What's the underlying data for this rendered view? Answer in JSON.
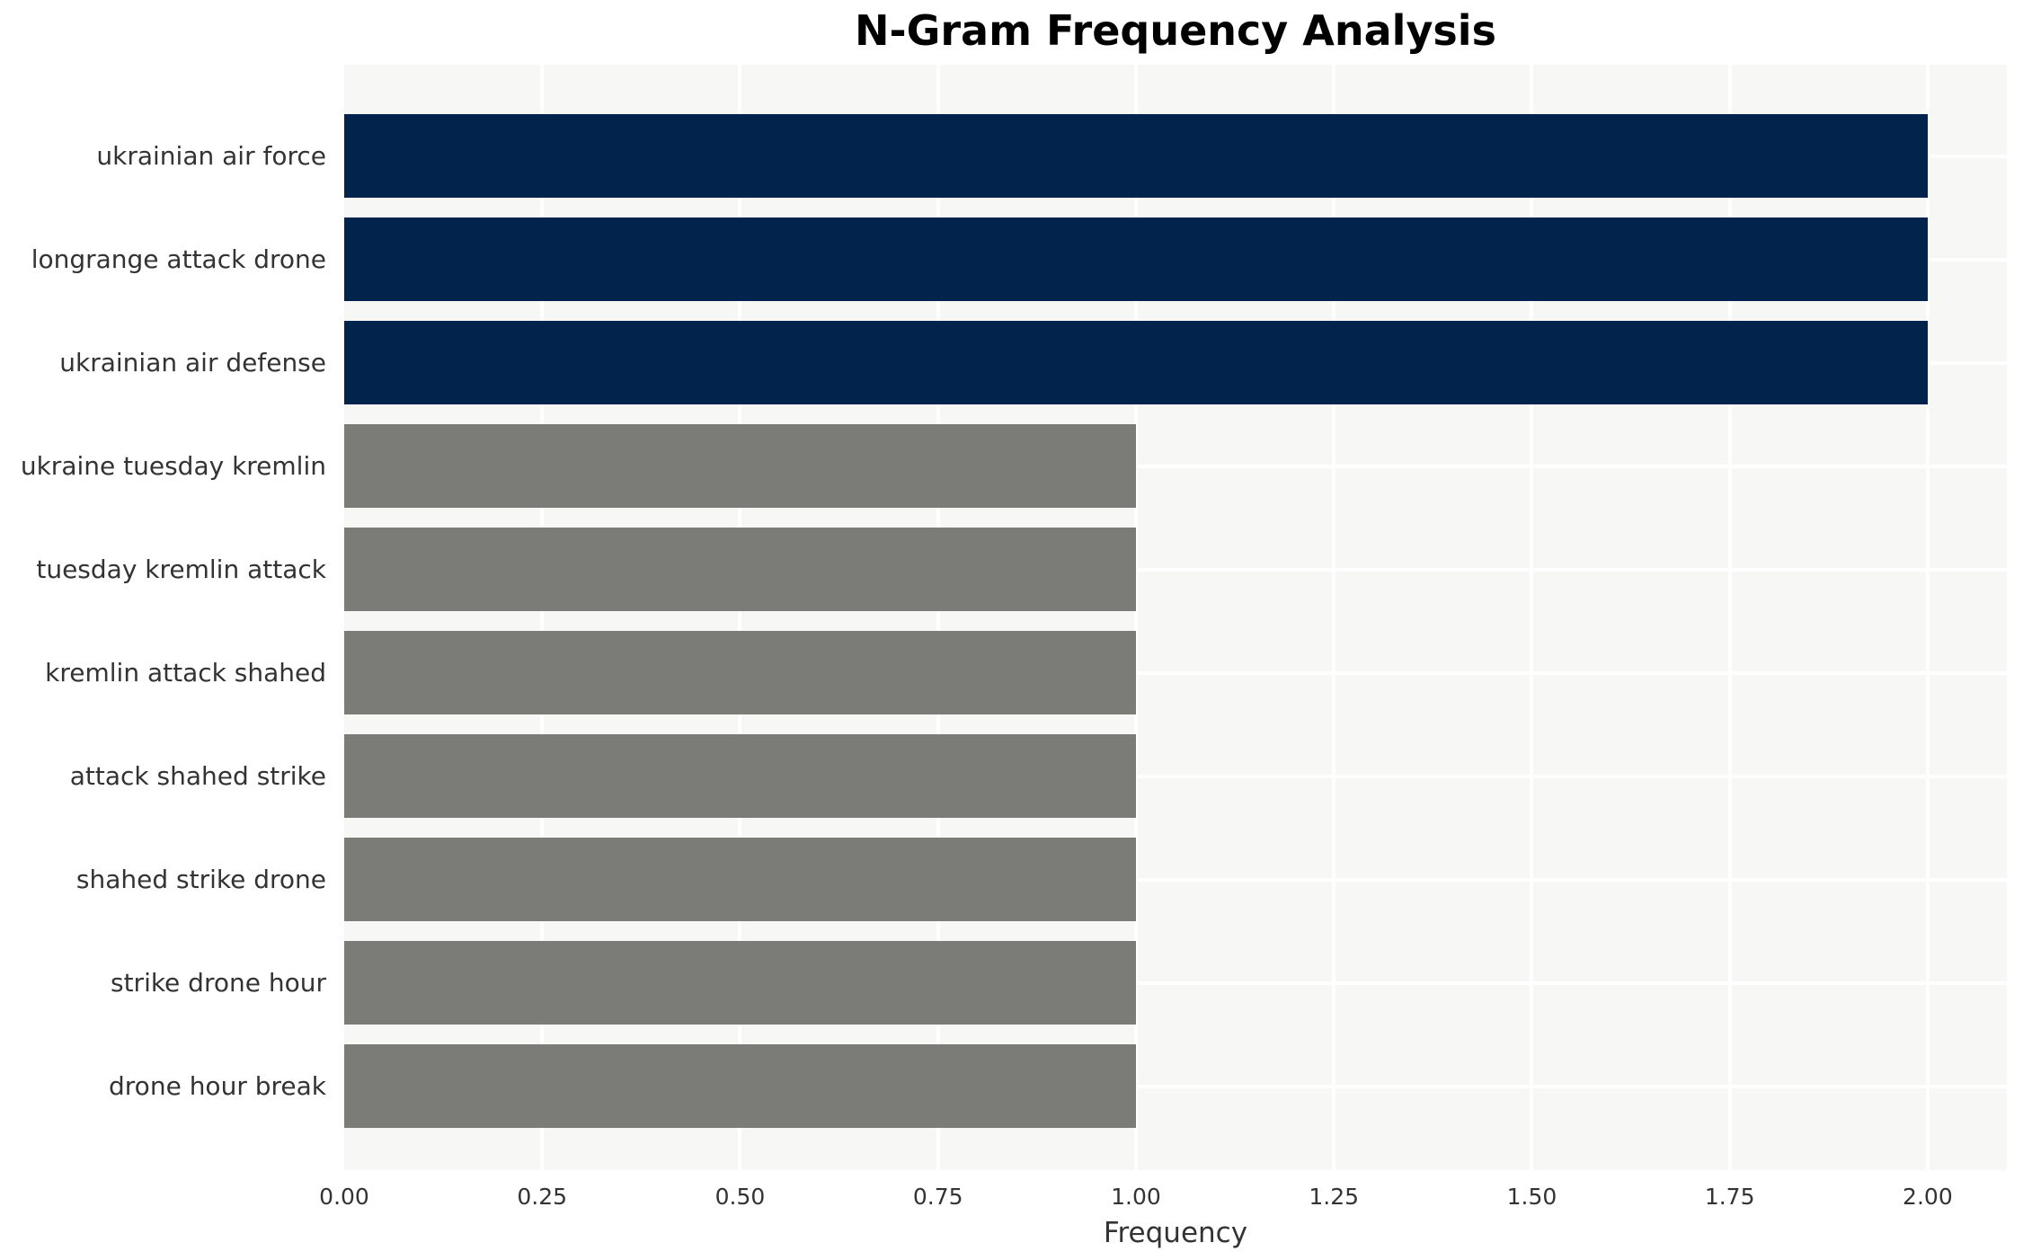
{
  "chart_data": {
    "type": "bar",
    "orientation": "horizontal",
    "title": "N-Gram Frequency Analysis",
    "xlabel": "Frequency",
    "ylabel": "",
    "categories": [
      "ukrainian air force",
      "longrange attack drone",
      "ukrainian air defense",
      "ukraine tuesday kremlin",
      "tuesday kremlin attack",
      "kremlin attack shahed",
      "attack shahed strike",
      "shahed strike drone",
      "strike drone hour",
      "drone hour break"
    ],
    "values": [
      2,
      2,
      2,
      1,
      1,
      1,
      1,
      1,
      1,
      1
    ],
    "bar_colors": [
      "#02234c",
      "#02234c",
      "#02234c",
      "#7b7b77",
      "#7b7b77",
      "#7b7b77",
      "#7b7b77",
      "#7b7b77",
      "#7b7b77",
      "#7b7b77"
    ],
    "xlim": [
      0,
      2.1
    ],
    "xticks": [
      "0.00",
      "0.25",
      "0.50",
      "0.75",
      "1.00",
      "1.25",
      "1.50",
      "1.75",
      "2.00"
    ],
    "xtick_values": [
      0,
      0.25,
      0.5,
      0.75,
      1.0,
      1.25,
      1.5,
      1.75,
      2.0
    ],
    "grid": true,
    "legend": false,
    "colors": {
      "high_freq_bar": "#02234c",
      "low_freq_bar": "#7b7b77",
      "plot_background": "#f7f7f6",
      "gridline": "#ffffff",
      "tick_text": "#333333",
      "title_text": "#000000"
    }
  }
}
